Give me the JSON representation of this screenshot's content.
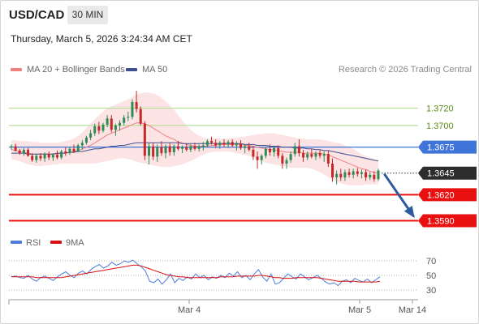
{
  "header": {
    "pair": "USD/CAD",
    "timeframe": "30 MIN",
    "datetime": "Thursday, March 5, 2026 3:24:34 AM CET"
  },
  "legend": {
    "ma20": "MA 20 + Bollinger Bands",
    "ma50": "MA 50",
    "credit": "Research © 2026 Trading Central"
  },
  "colors": {
    "bullish": "#2e8b57",
    "bearish": "#c62828",
    "band_fill": "#fde4e4",
    "ma20": "#f08080",
    "ma50": "#3d4f91",
    "resistance": "#b8de9a",
    "pivot": "#3f74d8",
    "support": "#e81010",
    "arrow": "#2e5a9e",
    "rsi": "#4c7dd8",
    "rsi_ma": "#d81010"
  },
  "chart_data": [
    {
      "type": "candlestick",
      "y_unit": "USD/CAD",
      "ylim": [
        1.355,
        1.3775
      ],
      "x_ticks": [
        "Mar 4",
        "Mar 5",
        "Mar 14"
      ],
      "levels": [
        {
          "value": 1.372,
          "label": "1.3720",
          "role": "resistance"
        },
        {
          "value": 1.37,
          "label": "1.3700",
          "role": "resistance"
        },
        {
          "value": 1.3675,
          "label": "1.3675",
          "role": "pivot"
        },
        {
          "value": 1.3645,
          "label": "1.3645",
          "role": "last-price"
        },
        {
          "value": 1.362,
          "label": "1.3620",
          "role": "support"
        },
        {
          "value": 1.359,
          "label": "1.3590",
          "role": "support"
        }
      ],
      "ohlc": [
        [
          1.3675,
          1.3678,
          1.3672,
          1.3676
        ],
        [
          1.3676,
          1.3679,
          1.367,
          1.3671
        ],
        [
          1.3671,
          1.3673,
          1.3666,
          1.3668
        ],
        [
          1.3668,
          1.3674,
          1.3665,
          1.3672
        ],
        [
          1.3672,
          1.3674,
          1.3664,
          1.3665
        ],
        [
          1.3665,
          1.3668,
          1.3658,
          1.366
        ],
        [
          1.366,
          1.3667,
          1.3657,
          1.3665
        ],
        [
          1.3665,
          1.3668,
          1.3659,
          1.3662
        ],
        [
          1.3662,
          1.3669,
          1.3658,
          1.3667
        ],
        [
          1.3667,
          1.367,
          1.366,
          1.3663
        ],
        [
          1.3663,
          1.3668,
          1.3659,
          1.3666
        ],
        [
          1.3666,
          1.3671,
          1.3661,
          1.3663
        ],
        [
          1.3663,
          1.3672,
          1.3661,
          1.367
        ],
        [
          1.367,
          1.3675,
          1.3665,
          1.3668
        ],
        [
          1.3668,
          1.3675,
          1.3666,
          1.3673
        ],
        [
          1.3673,
          1.3678,
          1.3668,
          1.367
        ],
        [
          1.367,
          1.3679,
          1.3669,
          1.3677
        ],
        [
          1.3677,
          1.3683,
          1.3672,
          1.368
        ],
        [
          1.368,
          1.3688,
          1.3678,
          1.3686
        ],
        [
          1.3686,
          1.3695,
          1.3683,
          1.3691
        ],
        [
          1.3691,
          1.3702,
          1.3688,
          1.3699
        ],
        [
          1.3699,
          1.3704,
          1.369,
          1.3694
        ],
        [
          1.3694,
          1.3703,
          1.3692,
          1.3701
        ],
        [
          1.3701,
          1.3712,
          1.3698,
          1.3708
        ],
        [
          1.3708,
          1.3712,
          1.3692,
          1.3695
        ],
        [
          1.3695,
          1.3702,
          1.3688,
          1.37
        ],
        [
          1.37,
          1.3706,
          1.3694,
          1.3703
        ],
        [
          1.3703,
          1.3712,
          1.37,
          1.3709
        ],
        [
          1.3709,
          1.3716,
          1.3705,
          1.371
        ],
        [
          1.371,
          1.373,
          1.3707,
          1.3727
        ],
        [
          1.3727,
          1.374,
          1.3715,
          1.3719
        ],
        [
          1.3719,
          1.3722,
          1.37,
          1.3702
        ],
        [
          1.3702,
          1.3705,
          1.366,
          1.3665
        ],
        [
          1.3665,
          1.368,
          1.3655,
          1.3676
        ],
        [
          1.3676,
          1.368,
          1.366,
          1.3664
        ],
        [
          1.3664,
          1.3678,
          1.3658,
          1.3675
        ],
        [
          1.3675,
          1.3682,
          1.3665,
          1.3668
        ],
        [
          1.3668,
          1.3678,
          1.3662,
          1.3676
        ],
        [
          1.3676,
          1.368,
          1.3665,
          1.3669
        ],
        [
          1.3669,
          1.3678,
          1.3665,
          1.3676
        ],
        [
          1.3676,
          1.3682,
          1.3671,
          1.3673
        ],
        [
          1.3673,
          1.3677,
          1.3668,
          1.3675
        ],
        [
          1.3675,
          1.3679,
          1.367,
          1.3672
        ],
        [
          1.3672,
          1.3678,
          1.3669,
          1.3676
        ],
        [
          1.3676,
          1.368,
          1.3671,
          1.3673
        ],
        [
          1.3673,
          1.3678,
          1.367,
          1.3675
        ],
        [
          1.3675,
          1.3681,
          1.3671,
          1.3677
        ],
        [
          1.3677,
          1.3684,
          1.3675,
          1.3682
        ],
        [
          1.3682,
          1.3687,
          1.3678,
          1.368
        ],
        [
          1.368,
          1.3684,
          1.3674,
          1.3677
        ],
        [
          1.3677,
          1.3682,
          1.3673,
          1.368
        ],
        [
          1.368,
          1.3684,
          1.3675,
          1.3678
        ],
        [
          1.3678,
          1.3683,
          1.3674,
          1.3681
        ],
        [
          1.3681,
          1.3684,
          1.3675,
          1.3677
        ],
        [
          1.3677,
          1.3682,
          1.3671,
          1.3679
        ],
        [
          1.3679,
          1.3683,
          1.3672,
          1.3674
        ],
        [
          1.3674,
          1.3678,
          1.3668,
          1.3676
        ],
        [
          1.3676,
          1.368,
          1.367,
          1.3672
        ],
        [
          1.3672,
          1.3676,
          1.366,
          1.3664
        ],
        [
          1.3664,
          1.367,
          1.365,
          1.366
        ],
        [
          1.366,
          1.3667,
          1.3655,
          1.3665
        ],
        [
          1.3665,
          1.3675,
          1.3662,
          1.3673
        ],
        [
          1.3673,
          1.3678,
          1.3665,
          1.3669
        ],
        [
          1.3669,
          1.3676,
          1.3664,
          1.3674
        ],
        [
          1.3674,
          1.3677,
          1.3662,
          1.3665
        ],
        [
          1.3665,
          1.3668,
          1.365,
          1.3656
        ],
        [
          1.3656,
          1.3663,
          1.365,
          1.366
        ],
        [
          1.366,
          1.367,
          1.3657,
          1.3667
        ],
        [
          1.3667,
          1.368,
          1.3664,
          1.3676
        ],
        [
          1.3676,
          1.3684,
          1.3664,
          1.3668
        ],
        [
          1.3668,
          1.3672,
          1.3658,
          1.3663
        ],
        [
          1.3663,
          1.367,
          1.366,
          1.3667
        ],
        [
          1.3667,
          1.3673,
          1.3662,
          1.3664
        ],
        [
          1.3664,
          1.367,
          1.366,
          1.3668
        ],
        [
          1.3668,
          1.3672,
          1.3662,
          1.3665
        ],
        [
          1.3665,
          1.367,
          1.3658,
          1.3667
        ],
        [
          1.3667,
          1.3671,
          1.3652,
          1.3656
        ],
        [
          1.3656,
          1.3662,
          1.3635,
          1.364
        ],
        [
          1.364,
          1.3648,
          1.3632,
          1.3644
        ],
        [
          1.3644,
          1.365,
          1.3636,
          1.364
        ],
        [
          1.364,
          1.3649,
          1.3636,
          1.3646
        ],
        [
          1.3646,
          1.365,
          1.364,
          1.3643
        ],
        [
          1.3643,
          1.365,
          1.3639,
          1.3647
        ],
        [
          1.3647,
          1.3651,
          1.3641,
          1.3644
        ],
        [
          1.3644,
          1.3649,
          1.3639,
          1.3646
        ],
        [
          1.3646,
          1.3649,
          1.3636,
          1.364
        ],
        [
          1.364,
          1.3646,
          1.3637,
          1.3643
        ],
        [
          1.3643,
          1.3647,
          1.3635,
          1.3638
        ],
        [
          1.3638,
          1.365,
          1.3636,
          1.3648
        ]
      ],
      "ma20": [
        1.3672,
        1.3671,
        1.367,
        1.3669,
        1.3668,
        1.3667,
        1.3667,
        1.3667,
        1.3667,
        1.3667,
        1.3667,
        1.3667,
        1.3668,
        1.3668,
        1.3669,
        1.367,
        1.3671,
        1.3673,
        1.3675,
        1.3677,
        1.368,
        1.3683,
        1.3686,
        1.3689,
        1.3691,
        1.3693,
        1.3695,
        1.3697,
        1.3699,
        1.3701,
        1.3703,
        1.3703,
        1.3702,
        1.37,
        1.3697,
        1.3694,
        1.3691,
        1.3688,
        1.3686,
        1.3684,
        1.3681,
        1.368,
        1.3678,
        1.3677,
        1.3676,
        1.3676,
        1.3676,
        1.3676,
        1.3677,
        1.3677,
        1.3678,
        1.3678,
        1.3678,
        1.3678,
        1.3678,
        1.3678,
        1.3677,
        1.3677,
        1.3676,
        1.3675,
        1.3674,
        1.3673,
        1.3672,
        1.3672,
        1.3671,
        1.367,
        1.3669,
        1.3669,
        1.3669,
        1.3669,
        1.3668,
        1.3668,
        1.3668,
        1.3668,
        1.3668,
        1.3667,
        1.3666,
        1.3664,
        1.3662,
        1.366,
        1.3658,
        1.3656,
        1.3654,
        1.3652,
        1.365,
        1.3649,
        1.3647,
        1.3646,
        1.3645
      ],
      "ma50": [
        1.3668,
        1.3668,
        1.3668,
        1.3668,
        1.3667,
        1.3667,
        1.3667,
        1.3667,
        1.3667,
        1.3667,
        1.3667,
        1.3668,
        1.3668,
        1.3668,
        1.3669,
        1.3669,
        1.367,
        1.367,
        1.3671,
        1.3672,
        1.3673,
        1.3673,
        1.3674,
        1.3675,
        1.3676,
        1.3676,
        1.3677,
        1.3677,
        1.3678,
        1.3679,
        1.368,
        1.368,
        1.368,
        1.368,
        1.368,
        1.368,
        1.368,
        1.368,
        1.368,
        1.368,
        1.368,
        1.3679,
        1.3679,
        1.3679,
        1.3679,
        1.3679,
        1.3679,
        1.3679,
        1.3679,
        1.3679,
        1.3679,
        1.3679,
        1.3679,
        1.3679,
        1.3679,
        1.3679,
        1.3678,
        1.3678,
        1.3678,
        1.3677,
        1.3677,
        1.3677,
        1.3676,
        1.3676,
        1.3676,
        1.3675,
        1.3675,
        1.3675,
        1.3674,
        1.3674,
        1.3674,
        1.3673,
        1.3673,
        1.3672,
        1.3672,
        1.3671,
        1.3671,
        1.367,
        1.3669,
        1.3668,
        1.3667,
        1.3666,
        1.3665,
        1.3664,
        1.3663,
        1.3662,
        1.3661,
        1.366,
        1.3659
      ],
      "bb_upper": [
        1.3683,
        1.3683,
        1.3682,
        1.3682,
        1.3682,
        1.3681,
        1.3681,
        1.368,
        1.368,
        1.368,
        1.368,
        1.368,
        1.3681,
        1.3682,
        1.3683,
        1.3685,
        1.3688,
        1.3692,
        1.3697,
        1.3702,
        1.3707,
        1.3712,
        1.3716,
        1.372,
        1.3722,
        1.3724,
        1.3726,
        1.3728,
        1.373,
        1.3733,
        1.3736,
        1.3737,
        1.3738,
        1.3738,
        1.3737,
        1.3735,
        1.3732,
        1.3728,
        1.3723,
        1.3718,
        1.3712,
        1.3706,
        1.37,
        1.3695,
        1.3691,
        1.3688,
        1.3686,
        1.3685,
        1.3685,
        1.3685,
        1.3685,
        1.3685,
        1.3685,
        1.3686,
        1.3686,
        1.3687,
        1.3687,
        1.3688,
        1.3689,
        1.369,
        1.369,
        1.3691,
        1.3691,
        1.3691,
        1.369,
        1.3689,
        1.3688,
        1.3687,
        1.3686,
        1.3685,
        1.3685,
        1.3684,
        1.3684,
        1.3684,
        1.3684,
        1.3683,
        1.3682,
        1.3681,
        1.368,
        1.3679,
        1.3677,
        1.3675,
        1.3673,
        1.367,
        1.3667,
        1.3665,
        1.3663,
        1.3661,
        1.366
      ],
      "bb_lower": [
        1.3661,
        1.366,
        1.3659,
        1.3657,
        1.3655,
        1.3654,
        1.3653,
        1.3653,
        1.3654,
        1.3654,
        1.3655,
        1.3655,
        1.3656,
        1.3656,
        1.3656,
        1.3656,
        1.3656,
        1.3656,
        1.3656,
        1.3656,
        1.3656,
        1.3657,
        1.3658,
        1.3659,
        1.366,
        1.3661,
        1.3662,
        1.3662,
        1.3661,
        1.366,
        1.3658,
        1.3657,
        1.3656,
        1.3655,
        1.3654,
        1.3653,
        1.3652,
        1.3652,
        1.3652,
        1.3653,
        1.3654,
        1.3655,
        1.3657,
        1.3659,
        1.3661,
        1.3664,
        1.3666,
        1.3668,
        1.3669,
        1.367,
        1.367,
        1.367,
        1.367,
        1.3669,
        1.3668,
        1.3667,
        1.3666,
        1.3665,
        1.3663,
        1.3661,
        1.3659,
        1.3657,
        1.3656,
        1.3655,
        1.3654,
        1.3653,
        1.3652,
        1.3651,
        1.3651,
        1.3651,
        1.3651,
        1.3651,
        1.365,
        1.3648,
        1.3646,
        1.3643,
        1.364,
        1.3637,
        1.3635,
        1.3633,
        1.3632,
        1.3631,
        1.3631,
        1.3631,
        1.3631,
        1.3632,
        1.3632,
        1.3632,
        1.3632
      ],
      "forecast_arrow": {
        "from": 1.3645,
        "to": 1.359
      }
    },
    {
      "type": "line",
      "series": [
        {
          "name": "RSI",
          "values": [
            48,
            49,
            47,
            46,
            50,
            45,
            42,
            47,
            49,
            46,
            43,
            48,
            52,
            55,
            50,
            47,
            53,
            56,
            52,
            58,
            62,
            65,
            60,
            63,
            68,
            64,
            66,
            70,
            68,
            71,
            66,
            62,
            56,
            42,
            40,
            45,
            38,
            44,
            52,
            40,
            46,
            43,
            48,
            45,
            52,
            47,
            50,
            44,
            48,
            46,
            50,
            47,
            53,
            49,
            55,
            47,
            50,
            44,
            52,
            58,
            48,
            42,
            52,
            38,
            40,
            46,
            52,
            48,
            45,
            52,
            48,
            44,
            47,
            50,
            46,
            41,
            38,
            40,
            36,
            42,
            44,
            40,
            46,
            43,
            41,
            45,
            40,
            44,
            48
          ]
        },
        {
          "name": "9MA",
          "values": [
            48,
            48,
            48,
            48,
            48,
            48,
            47,
            47,
            47,
            47,
            47,
            47,
            47,
            48,
            49,
            50,
            51,
            52,
            53,
            54,
            55,
            56,
            57,
            58,
            59,
            60,
            61,
            62,
            63,
            64,
            64,
            63,
            61,
            59,
            57,
            55,
            53,
            51,
            50,
            49,
            48,
            48,
            47,
            47,
            47,
            47,
            47,
            47,
            47,
            47,
            48,
            48,
            48,
            48,
            49,
            49,
            49,
            49,
            49,
            50,
            50,
            49,
            48,
            47,
            47,
            46,
            46,
            46,
            47,
            47,
            47,
            47,
            47,
            47,
            46,
            45,
            44,
            43,
            42,
            42,
            42,
            42,
            42,
            41,
            41,
            41,
            41,
            41,
            42
          ]
        }
      ],
      "ylim": [
        20,
        80
      ],
      "y_ticks": [
        70,
        50,
        30
      ]
    }
  ]
}
